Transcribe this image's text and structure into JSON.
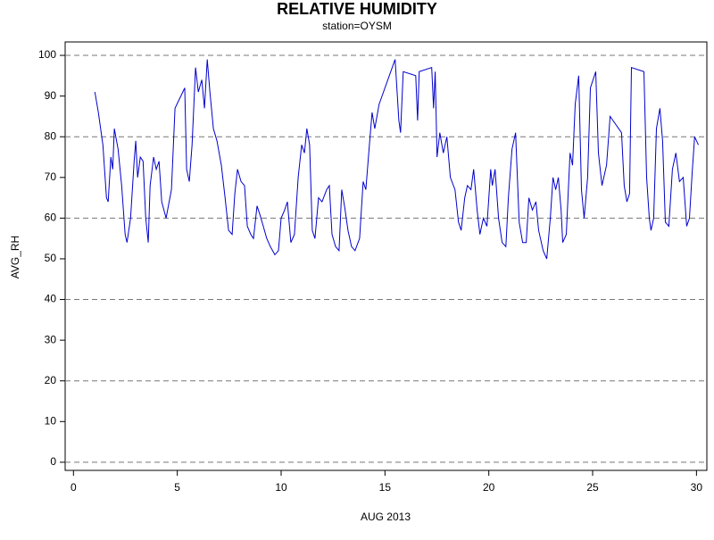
{
  "chart_data": {
    "type": "line",
    "title": "RELATIVE HUMIDITY",
    "subtitle": "station=OYSM",
    "x_label": "AUG 2013",
    "y_label": "AVG_RH",
    "xlim": [
      -0.4,
      30.5
    ],
    "xticks": [
      0,
      5,
      10,
      15,
      20,
      25,
      30
    ],
    "ylim": [
      -2,
      103.3
    ],
    "yticks": [
      0,
      10,
      20,
      30,
      40,
      50,
      60,
      70,
      80,
      90,
      100
    ],
    "grid_lines": [
      0,
      20,
      40,
      60,
      80,
      100
    ],
    "series": [
      {
        "name": "AVG_RH",
        "color": "#0000cc",
        "x": [
          1.03,
          1.2,
          1.42,
          1.59,
          1.67,
          1.8,
          1.89,
          1.97,
          2.15,
          2.32,
          2.49,
          2.58,
          2.75,
          2.92,
          3.0,
          3.09,
          3.22,
          3.35,
          3.48,
          3.6,
          3.69,
          3.86,
          3.99,
          4.12,
          4.25,
          4.46,
          4.72,
          4.89,
          5.36,
          5.45,
          5.58,
          5.71,
          5.88,
          6.01,
          6.18,
          6.31,
          6.44,
          6.57,
          6.74,
          6.91,
          7.12,
          7.3,
          7.47,
          7.64,
          7.77,
          7.9,
          8.07,
          8.24,
          8.37,
          8.54,
          8.67,
          8.84,
          8.97,
          9.14,
          9.31,
          9.48,
          9.7,
          9.87,
          10.0,
          10.17,
          10.3,
          10.47,
          10.64,
          10.82,
          10.99,
          11.12,
          11.24,
          11.37,
          11.5,
          11.63,
          11.8,
          11.97,
          12.19,
          12.32,
          12.45,
          12.62,
          12.79,
          12.92,
          13.05,
          13.22,
          13.39,
          13.56,
          13.78,
          13.95,
          14.08,
          14.25,
          14.38,
          14.51,
          14.72,
          15.49,
          15.67,
          15.75,
          15.88,
          16.48,
          16.57,
          16.65,
          17.25,
          17.34,
          17.42,
          17.51,
          17.64,
          17.81,
          17.98,
          18.15,
          18.37,
          18.54,
          18.67,
          18.84,
          18.97,
          19.14,
          19.27,
          19.44,
          19.57,
          19.74,
          19.91,
          20.09,
          20.17,
          20.3,
          20.47,
          20.64,
          20.82,
          20.94,
          21.12,
          21.29,
          21.46,
          21.63,
          21.8,
          21.93,
          22.1,
          22.27,
          22.4,
          22.62,
          22.79,
          22.96,
          23.09,
          23.22,
          23.35,
          23.48,
          23.56,
          23.73,
          23.91,
          24.03,
          24.16,
          24.33,
          24.46,
          24.59,
          24.76,
          24.89,
          25.15,
          25.28,
          25.45,
          25.67,
          25.84,
          26.39,
          26.52,
          26.65,
          26.78,
          26.87,
          27.47,
          27.6,
          27.73,
          27.81,
          27.94,
          28.07,
          28.24,
          28.37,
          28.5,
          28.67,
          28.84,
          29.01,
          29.18,
          29.36,
          29.53,
          29.66,
          29.79,
          29.91,
          30.09
        ],
        "values": [
          91,
          86,
          78,
          65,
          64,
          75,
          72,
          82,
          77,
          68,
          56,
          54,
          60,
          74,
          79,
          70,
          75,
          74,
          60,
          54,
          68,
          75,
          72,
          74,
          64,
          60,
          67,
          87,
          92,
          72,
          69,
          78,
          97,
          91,
          94,
          87,
          99,
          91,
          82,
          79,
          73,
          65,
          57,
          56,
          66,
          72,
          69,
          68,
          58,
          56,
          55,
          63,
          61,
          58,
          55,
          53,
          51,
          52,
          60,
          62,
          64,
          54,
          56,
          70,
          78,
          76,
          82,
          78,
          57,
          55,
          65,
          64,
          67,
          68,
          56,
          53,
          52,
          67,
          63,
          57,
          53,
          52,
          55,
          69,
          67,
          78,
          86,
          82,
          88,
          99,
          84,
          81,
          96,
          95,
          84,
          96,
          97,
          87,
          96,
          75,
          81,
          76,
          80,
          70,
          67,
          59,
          57,
          65,
          68,
          67,
          72,
          62,
          56,
          60,
          58,
          72,
          68,
          72,
          60,
          54,
          53,
          65,
          77,
          81,
          59,
          54,
          54,
          65,
          62,
          64,
          57,
          52,
          50,
          60,
          70,
          67,
          70,
          62,
          54,
          56,
          76,
          73,
          88,
          95,
          67,
          60,
          70,
          92,
          96,
          76,
          68,
          73,
          85,
          81,
          68,
          64,
          66,
          97,
          96,
          70,
          60,
          57,
          60,
          82,
          87,
          79,
          59,
          58,
          72,
          76,
          69,
          70,
          58,
          60,
          71,
          80,
          78
        ]
      }
    ]
  }
}
